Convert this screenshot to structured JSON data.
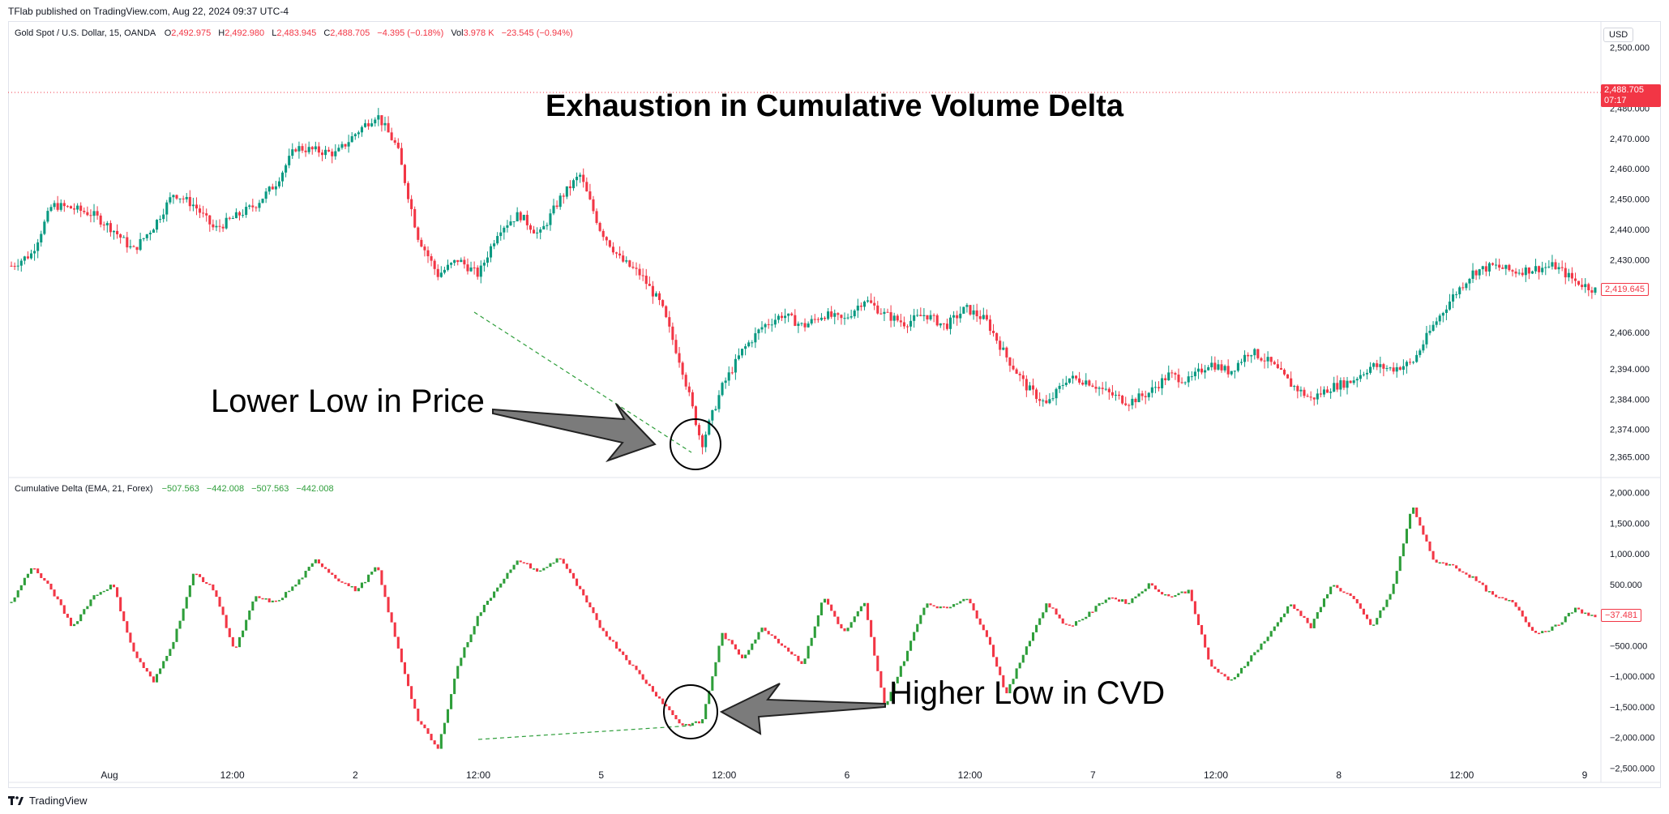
{
  "header": {
    "publisher_line": "TFlab published on TradingView.com, Aug 22, 2024 09:37 UTC-4"
  },
  "price_pane": {
    "symbol": "Gold Spot / U.S. Dollar, 15, OANDA",
    "ohlc": [
      {
        "label": "O",
        "value": "2,492.975"
      },
      {
        "label": "H",
        "value": "2,492.980"
      },
      {
        "label": "L",
        "value": "2,483.945"
      },
      {
        "label": "C",
        "value": "2,488.705"
      }
    ],
    "change": "−4.395 (−0.18%)",
    "vol_label": "Vol",
    "vol_value": "3.978 K",
    "vol_change": "−23.545 (−0.94%)",
    "currency": "USD",
    "last_price": "2,488.705",
    "countdown": "07:17",
    "marker_price": "2,419.645",
    "y_ticks": [
      "2,500.000",
      "2,480.000",
      "2,470.000",
      "2,460.000",
      "2,450.000",
      "2,440.000",
      "2,430.000",
      "2,406.000",
      "2,394.000",
      "2,384.000",
      "2,374.000",
      "2,365.000"
    ]
  },
  "cvd_pane": {
    "title": "Cumulative Delta (EMA, 21, Forex)",
    "values": [
      "−507.563",
      "−442.008",
      "−507.563",
      "−442.008"
    ],
    "marker_value": "−37.481",
    "y_ticks": [
      "2,000.000",
      "1,500.000",
      "1,000.000",
      "500.000",
      "−500.000",
      "−1,000.000",
      "−1,500.000",
      "−2,000.000",
      "−2,500.000"
    ]
  },
  "x_axis": {
    "labels": [
      "Aug",
      "12:00",
      "2",
      "12:00",
      "5",
      "12:00",
      "6",
      "12:00",
      "7",
      "12:00",
      "8",
      "12:00",
      "9"
    ]
  },
  "annotations": {
    "title": "Exhaustion in Cumulative Volume Delta",
    "price_note": "Lower Low in Price",
    "cvd_note": "Higher Low in CVD"
  },
  "footer": {
    "brand": "TradingView"
  },
  "colors": {
    "up": "#089981",
    "down": "#f23645",
    "cvd_up": "#2e9e3a",
    "cvd_down": "#f23645",
    "divergence_line": "#2e9e3a"
  },
  "chart_data": [
    {
      "type": "candlestick",
      "title": "Gold Spot / U.S. Dollar, 15, OANDA",
      "x": [
        "Aug 1",
        "Aug 1 12:00",
        "Aug 2",
        "Aug 2 12:00",
        "Aug 5",
        "Aug 5 12:00",
        "Aug 6",
        "Aug 6 12:00",
        "Aug 7",
        "Aug 7 12:00",
        "Aug 8",
        "Aug 8 12:00",
        "Aug 9"
      ],
      "close_path": [
        2428,
        2432,
        2448,
        2447,
        2445,
        2440,
        2433,
        2441,
        2452,
        2448,
        2440,
        2444,
        2448,
        2455,
        2467,
        2466,
        2465,
        2472,
        2478,
        2467,
        2438,
        2425,
        2430,
        2425,
        2440,
        2445,
        2438,
        2450,
        2458,
        2440,
        2430,
        2425,
        2415,
        2395,
        2369,
        2388,
        2400,
        2408,
        2412,
        2408,
        2412,
        2410,
        2417,
        2412,
        2409,
        2412,
        2408,
        2414,
        2410,
        2398,
        2388,
        2382,
        2391,
        2390,
        2386,
        2383,
        2386,
        2392,
        2390,
        2396,
        2393,
        2400,
        2396,
        2389,
        2384,
        2388,
        2390,
        2395,
        2394,
        2396,
        2408,
        2418,
        2426,
        2428,
        2426,
        2427,
        2428,
        2423,
        2420
      ],
      "ylim": [
        2360,
        2505
      ],
      "y_ticks": [
        2365,
        2374,
        2384,
        2394,
        2406,
        2430,
        2440,
        2450,
        2460,
        2470,
        2480,
        2500
      ],
      "last": 2488.705,
      "annotations": [
        "Lower Low in Price"
      ]
    },
    {
      "type": "bar",
      "title": "Cumulative Delta (EMA, 21, Forex)",
      "values_path": [
        200,
        800,
        400,
        -200,
        300,
        500,
        -600,
        -1100,
        -400,
        700,
        400,
        -600,
        300,
        200,
        500,
        900,
        600,
        400,
        800,
        -500,
        -1700,
        -2200,
        -800,
        0,
        500,
        900,
        700,
        950,
        400,
        -200,
        -600,
        -1000,
        -1400,
        -1800,
        -1750,
        -300,
        -700,
        -200,
        -500,
        -800,
        300,
        -300,
        200,
        -1500,
        -700,
        200,
        100,
        300,
        -300,
        -1300,
        -500,
        200,
        -200,
        0,
        300,
        200,
        500,
        300,
        400,
        -800,
        -1100,
        -700,
        -300,
        200,
        -200,
        500,
        300,
        -200,
        400,
        1800,
        900,
        800,
        600,
        300,
        200,
        -300,
        -200,
        100,
        -37.481
      ],
      "ylim": [
        -2600,
        2100
      ],
      "y_ticks": [
        -2500,
        -2000,
        -1500,
        -1000,
        -500,
        500,
        1000,
        1500,
        2000
      ],
      "annotations": [
        "Higher Low in CVD"
      ]
    }
  ]
}
